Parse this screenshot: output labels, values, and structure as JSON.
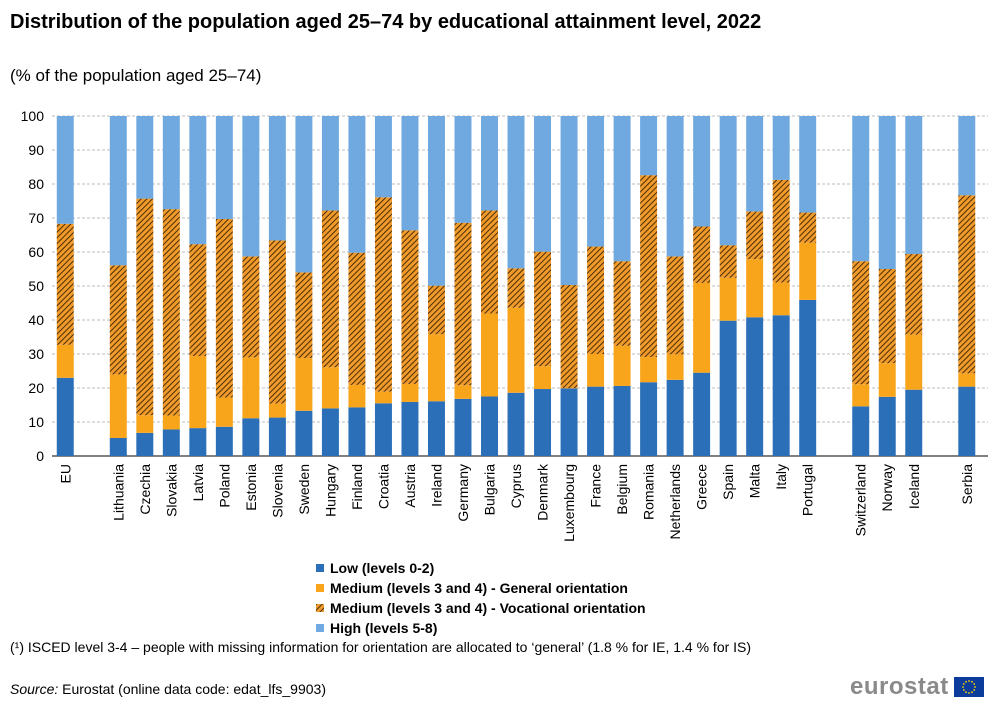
{
  "title": "Distribution of the population aged 25–74 by educational attainment level, 2022",
  "subtitle": "(% of the population  aged 25–74)",
  "footnote": "(¹) ISCED level 3-4 – people with missing information for orientation are allocated to ‘general’ (1.8 % for IE, 1.4 % for IS)",
  "source_label": "Source:",
  "source_text": " Eurostat (online data code: edat_lfs_9903)",
  "logo_text": "eurostat",
  "colors": {
    "low": "#2a6fb8",
    "general": "#f9a51b",
    "vocational_bg": "#f09a2b",
    "vocational_hatch": "#3a2200",
    "high": "#6fa9e0",
    "grid": "#bdbdbd",
    "flag": "#0b3c9b",
    "flag_star": "#ffd200"
  },
  "legend": [
    {
      "key": "low",
      "label": "Low (levels 0-2)"
    },
    {
      "key": "general",
      "label": "Medium (levels 3 and 4) - General orientation"
    },
    {
      "key": "vocational",
      "label": "Medium (levels 3 and 4) - Vocational orientation"
    },
    {
      "key": "high",
      "label": "High (levels 5-8)"
    }
  ],
  "chart_data": {
    "type": "bar",
    "stacked": true,
    "ylim": [
      0,
      100
    ],
    "yticks": [
      0,
      10,
      20,
      30,
      40,
      50,
      60,
      70,
      80,
      90,
      100
    ],
    "grid": true,
    "legend_position": "bottom",
    "categories": [
      "EU",
      "Lithuania",
      "Czechia",
      "Slovakia",
      "Latvia",
      "Poland",
      "Estonia",
      "Slovenia",
      "Sweden",
      "Hungary",
      "Finland",
      "Croatia",
      "Austria",
      "Ireland",
      "Germany",
      "Bulgaria",
      "Cyprus",
      "Denmark",
      "Luxembourg",
      "France",
      "Belgium",
      "Romania",
      "Netherlands",
      "Greece",
      "Spain",
      "Malta",
      "Italy",
      "Portugal",
      "Switzerland",
      "Norway",
      "Iceland",
      "Serbia"
    ],
    "groups": [
      {
        "start": 0,
        "end": 0
      },
      {
        "start": 1,
        "end": 27
      },
      {
        "start": 28,
        "end": 30
      },
      {
        "start": 31,
        "end": 31
      }
    ],
    "series": [
      {
        "name": "Low (levels 0-2)",
        "key": "low",
        "values": [
          23.0,
          5.3,
          6.8,
          7.8,
          8.2,
          8.6,
          11.1,
          11.3,
          13.3,
          14.0,
          14.3,
          15.5,
          15.9,
          16.1,
          16.8,
          17.5,
          18.6,
          19.7,
          19.9,
          20.4,
          20.6,
          21.7,
          22.4,
          24.5,
          39.8,
          40.8,
          41.4,
          45.9,
          14.6,
          17.4,
          19.5,
          20.4
        ]
      },
      {
        "name": "Medium (levels 3 and 4) - General orientation",
        "key": "general",
        "values": [
          9.7,
          18.7,
          5.2,
          4.1,
          21.2,
          8.6,
          17.9,
          4.1,
          15.5,
          12.1,
          6.6,
          3.4,
          5.3,
          19.7,
          4.0,
          24.4,
          25.0,
          6.7,
          0.1,
          9.6,
          11.8,
          7.4,
          7.5,
          26.4,
          12.6,
          17.1,
          9.6,
          16.8,
          6.5,
          9.9,
          16.2,
          3.9
        ]
      },
      {
        "name": "Medium (levels 3 and 4) - Vocational orientation",
        "key": "vocational",
        "values": [
          35.6,
          32.1,
          63.7,
          60.7,
          32.9,
          52.5,
          29.7,
          48.0,
          25.2,
          46.1,
          38.9,
          57.2,
          45.2,
          14.3,
          47.8,
          30.3,
          11.6,
          33.7,
          30.3,
          31.6,
          24.9,
          53.5,
          28.8,
          16.6,
          9.6,
          14.0,
          30.2,
          8.9,
          36.2,
          27.7,
          23.7,
          52.4
        ]
      },
      {
        "name": "High (levels 5-8)",
        "key": "high",
        "values": [
          31.7,
          43.9,
          24.3,
          27.4,
          37.7,
          30.3,
          41.3,
          36.6,
          46.0,
          27.8,
          40.2,
          23.9,
          33.6,
          49.9,
          31.4,
          27.8,
          44.8,
          39.9,
          49.7,
          38.4,
          42.7,
          17.4,
          41.3,
          32.5,
          38.0,
          28.1,
          18.8,
          28.4,
          42.7,
          45.0,
          40.6,
          23.3
        ]
      }
    ]
  }
}
